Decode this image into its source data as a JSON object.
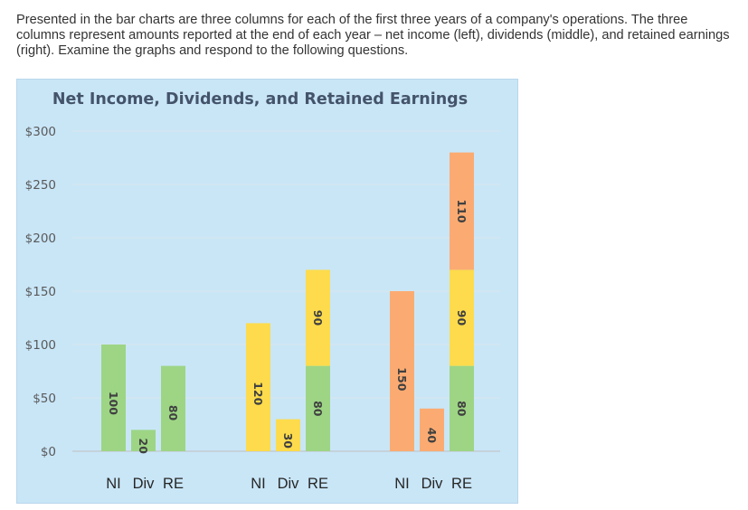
{
  "intro_text": "Presented in the bar charts are three columns for each of the first three years of a company's operations. The three columns represent amounts reported at the end of each year – net income (left), dividends (middle), and retained earnings (right). Examine the graphs and respond to the following questions.",
  "chart_data": {
    "type": "bar",
    "stacked": true,
    "title": "Net Income, Dividends, and Retained Earnings",
    "ylim": [
      0,
      300
    ],
    "y_ticks": [
      "$0",
      "$50",
      "$100",
      "$150",
      "$200",
      "$250",
      "$300"
    ],
    "y_tick_values": [
      0,
      50,
      100,
      150,
      200,
      250,
      300
    ],
    "grid": true,
    "colors": {
      "green": "#9dd585",
      "yellow": "#fddb4c",
      "orange": "#fbab72",
      "background": "#c9e6f7"
    },
    "groups": [
      {
        "bars": [
          {
            "category": "NI",
            "segments": [
              {
                "value": 100,
                "label": "100",
                "color": "green"
              }
            ]
          },
          {
            "category": "Div",
            "segments": [
              {
                "value": 20,
                "label": "20",
                "color": "green"
              }
            ]
          },
          {
            "category": "RE",
            "segments": [
              {
                "value": 80,
                "label": "80",
                "color": "green"
              }
            ]
          }
        ]
      },
      {
        "bars": [
          {
            "category": "NI",
            "segments": [
              {
                "value": 120,
                "label": "120",
                "color": "yellow"
              }
            ]
          },
          {
            "category": "Div",
            "segments": [
              {
                "value": 30,
                "label": "30",
                "color": "yellow"
              }
            ]
          },
          {
            "category": "RE",
            "segments": [
              {
                "value": 80,
                "label": "80",
                "color": "green"
              },
              {
                "value": 90,
                "label": "90",
                "color": "yellow"
              }
            ]
          }
        ]
      },
      {
        "bars": [
          {
            "category": "NI",
            "segments": [
              {
                "value": 150,
                "label": "150",
                "color": "orange"
              }
            ]
          },
          {
            "category": "Div",
            "segments": [
              {
                "value": 40,
                "label": "40",
                "color": "orange"
              }
            ]
          },
          {
            "category": "RE",
            "segments": [
              {
                "value": 80,
                "label": "80",
                "color": "green"
              },
              {
                "value": 90,
                "label": "90",
                "color": "yellow"
              },
              {
                "value": 110,
                "label": "110",
                "color": "orange"
              }
            ]
          }
        ]
      }
    ]
  }
}
